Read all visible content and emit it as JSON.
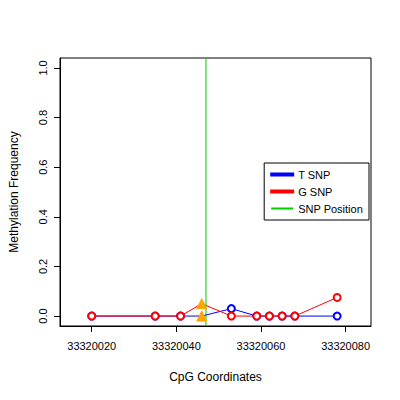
{
  "chart_data": {
    "type": "line",
    "xlabel": "CpG Coordinates",
    "ylabel": "Methylation Frequency",
    "x": [
      33320020,
      33320035,
      33320041,
      33320046,
      33320053,
      33320059,
      33320062,
      33320065,
      33320068,
      33320078
    ],
    "series": [
      {
        "name": "T SNP",
        "color": "#0000ff",
        "marker": "circle",
        "values": [
          0,
          0,
          0,
          0,
          0.03,
          0,
          0,
          0,
          0,
          0
        ]
      },
      {
        "name": "G SNP",
        "color": "#ff0000",
        "marker": "circle",
        "values": [
          0,
          0,
          0,
          0.05,
          0,
          0,
          0,
          0,
          0,
          0.075
        ]
      }
    ],
    "snp_position": {
      "name": "SNP Position",
      "x": 33320047,
      "color": "#00cc00"
    },
    "xlim": [
      33320012.5,
      33320086
    ],
    "xticks": [
      33320020,
      33320040,
      33320060,
      33320080
    ],
    "ylim": [
      -0.04,
      1.04
    ],
    "yticks": [
      {
        "value": 0,
        "label": "0.0"
      },
      {
        "value": 0.2,
        "label": "0.2"
      },
      {
        "value": 0.4,
        "label": "0.4"
      },
      {
        "value": 0.6,
        "label": "0.6"
      },
      {
        "value": 0.8,
        "label": "0.8"
      },
      {
        "value": 1,
        "label": "1.0"
      }
    ],
    "legend": "right",
    "grid": false
  }
}
